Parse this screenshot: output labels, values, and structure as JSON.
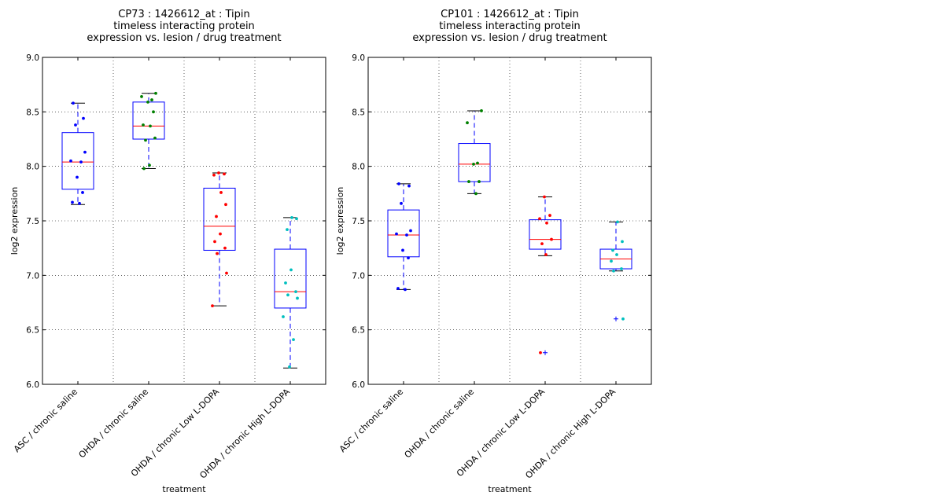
{
  "chart_data": [
    {
      "type": "boxplot",
      "title_lines": [
        "CP73 : 1426612_at : Tipin",
        "timeless interacting protein",
        "expression vs. lesion / drug treatment"
      ],
      "xlabel": "treatment",
      "ylabel": "log2 expression",
      "ylim": [
        6.0,
        9.0
      ],
      "yticks": [
        "6.0",
        "6.5",
        "7.0",
        "7.5",
        "8.0",
        "8.5",
        "9.0"
      ],
      "grid": true,
      "categories": [
        "ASC / chronic saline",
        "OHDA / chronic saline",
        "OHDA / chronic Low L-DOPA",
        "OHDA / chronic High L-DOPA"
      ],
      "boxes": [
        {
          "whisker_low": 7.65,
          "q1": 7.79,
          "median": 8.04,
          "q3": 8.31,
          "whisker_high": 8.58,
          "color": "#0000ff",
          "points": [
            8.58,
            8.44,
            8.38,
            8.13,
            8.05,
            8.04,
            7.9,
            7.76,
            7.67,
            7.66
          ]
        },
        {
          "whisker_low": 7.98,
          "q1": 8.25,
          "median": 8.37,
          "q3": 8.59,
          "whisker_high": 8.67,
          "color": "#008000",
          "points": [
            8.67,
            8.64,
            8.61,
            8.59,
            8.5,
            8.38,
            8.37,
            8.26,
            8.24,
            8.01,
            7.98
          ]
        },
        {
          "whisker_low": 6.72,
          "q1": 7.23,
          "median": 7.45,
          "q3": 7.8,
          "whisker_high": 7.94,
          "color": "#ff0000",
          "points": [
            7.94,
            7.93,
            7.92,
            7.76,
            7.65,
            7.54,
            7.38,
            7.31,
            7.25,
            7.2,
            7.02,
            6.72
          ]
        },
        {
          "whisker_low": 6.15,
          "q1": 6.7,
          "median": 6.85,
          "q3": 7.24,
          "whisker_high": 7.53,
          "color": "#00bfbf",
          "points": [
            7.53,
            7.52,
            7.42,
            7.05,
            6.93,
            6.85,
            6.82,
            6.79,
            6.62,
            6.41,
            6.16
          ]
        }
      ]
    },
    {
      "type": "boxplot",
      "title_lines": [
        "CP101 : 1426612_at : Tipin",
        "timeless interacting protein",
        "expression vs. lesion / drug treatment"
      ],
      "xlabel": "treatment",
      "ylabel": "log2 expression",
      "ylim": [
        6.0,
        9.0
      ],
      "yticks": [
        "6.0",
        "6.5",
        "7.0",
        "7.5",
        "8.0",
        "8.5",
        "9.0"
      ],
      "grid": true,
      "categories": [
        "ASC / chronic saline",
        "OHDA / chronic saline",
        "OHDA / chronic Low L-DOPA",
        "OHDA / chronic High L-DOPA"
      ],
      "boxes": [
        {
          "whisker_low": 6.87,
          "q1": 7.17,
          "median": 7.37,
          "q3": 7.6,
          "whisker_high": 7.84,
          "color": "#0000ff",
          "points": [
            7.84,
            7.82,
            7.66,
            7.41,
            7.38,
            7.37,
            7.23,
            7.16,
            6.88,
            6.87
          ]
        },
        {
          "whisker_low": 7.75,
          "q1": 7.86,
          "median": 8.02,
          "q3": 8.21,
          "whisker_high": 8.51,
          "color": "#008000",
          "points": [
            8.51,
            8.4,
            8.03,
            8.02,
            7.86,
            7.86,
            7.75
          ]
        },
        {
          "whisker_low": 7.18,
          "q1": 7.24,
          "median": 7.33,
          "q3": 7.51,
          "whisker_high": 7.72,
          "color": "#ff0000",
          "outliers": [
            6.29
          ],
          "points": [
            7.72,
            7.55,
            7.52,
            7.48,
            7.33,
            7.29,
            7.19,
            6.29
          ]
        },
        {
          "whisker_low": 7.04,
          "q1": 7.06,
          "median": 7.15,
          "q3": 7.24,
          "whisker_high": 7.49,
          "color": "#00bfbf",
          "outliers": [
            6.6
          ],
          "points": [
            7.49,
            7.31,
            7.23,
            7.19,
            7.13,
            7.06,
            7.04,
            6.6
          ]
        }
      ]
    }
  ]
}
